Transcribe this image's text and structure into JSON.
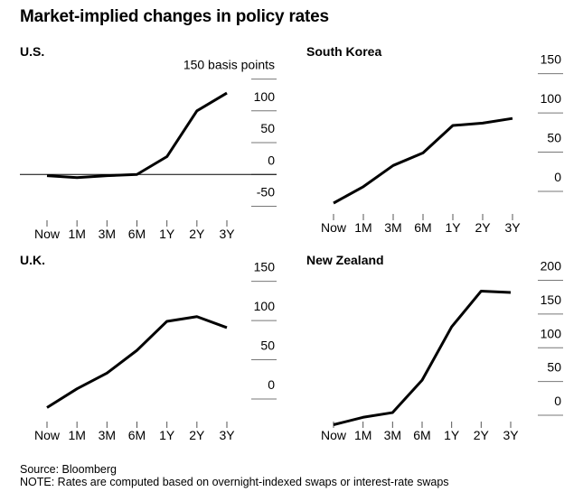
{
  "page": {
    "title": "Market-implied changes in policy rates"
  },
  "footer": {
    "source": "Source: Bloomberg",
    "note": "NOTE: Rates are computed based on overnight-indexed swaps or interest-rate swaps"
  },
  "chart_data": [
    {
      "type": "line",
      "title": "U.S.",
      "unit_label": "basis points",
      "categories": [
        "Now",
        "1M",
        "3M",
        "6M",
        "1Y",
        "2Y",
        "3Y"
      ],
      "values": [
        -2,
        -5,
        -2,
        0,
        28,
        100,
        128
      ],
      "yticks": [
        150,
        100,
        50,
        0,
        -50
      ],
      "top_tick_label": "150 basis points",
      "ylim": [
        -55,
        165
      ],
      "zero_line": true
    },
    {
      "type": "line",
      "title": "South Korea",
      "categories": [
        "Now",
        "1M",
        "3M",
        "6M",
        "1Y",
        "2Y",
        "3Y"
      ],
      "values": [
        -15,
        6,
        33,
        49,
        84,
        87,
        93
      ],
      "yticks": [
        150,
        100,
        50,
        0
      ],
      "ylim": [
        -15,
        160
      ]
    },
    {
      "type": "line",
      "title": "U.K.",
      "categories": [
        "Now",
        "1M",
        "3M",
        "6M",
        "1Y",
        "2Y",
        "3Y"
      ],
      "values": [
        -11,
        13,
        33,
        62,
        99,
        105,
        91
      ],
      "yticks": [
        150,
        100,
        50,
        0
      ],
      "ylim": [
        -15,
        160
      ]
    },
    {
      "type": "line",
      "title": "New Zealand",
      "categories": [
        "Now",
        "1M",
        "3M",
        "6M",
        "1Y",
        "2Y",
        "3Y"
      ],
      "values": [
        -14,
        -3,
        4,
        52,
        131,
        184,
        182
      ],
      "yticks": [
        200,
        150,
        100,
        50,
        0
      ],
      "ylim": [
        -20,
        210
      ]
    }
  ]
}
